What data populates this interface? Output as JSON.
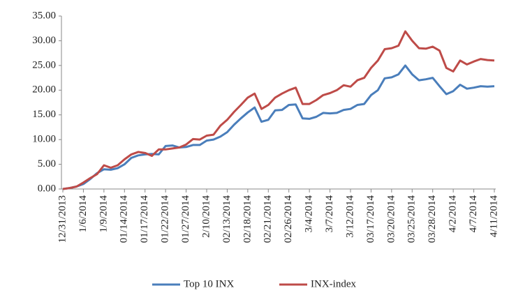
{
  "chart_data": {
    "type": "line",
    "categories": [
      "12/31/2013",
      null,
      null,
      "1/6/2014",
      null,
      null,
      "1/9/2014",
      null,
      null,
      "01/14/2014",
      null,
      null,
      "01/17/2014",
      null,
      null,
      "01/22/2014",
      null,
      null,
      "01/27/2014",
      null,
      null,
      "2/10/2014",
      null,
      null,
      "02/13/2014",
      null,
      null,
      "02/18/2014",
      null,
      null,
      "02/21/2014",
      null,
      null,
      "02/26/2014",
      null,
      null,
      "3/4/2014",
      null,
      null,
      "3/7/2014",
      null,
      null,
      "3/12/2014",
      null,
      null,
      "03/17/2014",
      null,
      null,
      "03/20/2014",
      null,
      null,
      "03/25/2014",
      null,
      null,
      "03/28/2014",
      null,
      null,
      "4/2/2014",
      null,
      null,
      "4/7/2014",
      null,
      null,
      "4/11/2014"
    ],
    "series": [
      {
        "name": "Top 10 INX",
        "color": "#4a7ebb",
        "values": [
          0,
          0.2,
          0.5,
          1.0,
          2.0,
          3.2,
          4.0,
          3.9,
          4.2,
          5.0,
          6.3,
          6.8,
          7.0,
          7.1,
          7.0,
          8.7,
          8.8,
          8.4,
          8.5,
          8.9,
          8.9,
          9.8,
          10.0,
          10.6,
          11.5,
          13.0,
          14.3,
          15.5,
          16.5,
          13.6,
          14.0,
          15.9,
          16.0,
          17.0,
          17.1,
          14.3,
          14.2,
          14.6,
          15.4,
          15.3,
          15.4,
          16.0,
          16.2,
          17.0,
          17.2,
          19.0,
          20.0,
          22.4,
          22.6,
          23.2,
          25.0,
          23.2,
          22.0,
          22.2,
          22.5,
          20.8,
          19.2,
          19.8,
          21.1,
          20.3,
          20.5,
          20.8,
          20.7,
          20.8
        ]
      },
      {
        "name": "INX-index",
        "color": "#be4b48",
        "values": [
          0,
          0.2,
          0.5,
          1.3,
          2.2,
          3.0,
          4.8,
          4.3,
          4.8,
          6.0,
          7.0,
          7.5,
          7.3,
          6.7,
          8.0,
          8.0,
          8.2,
          8.4,
          9.0,
          10.1,
          10.0,
          10.8,
          11.0,
          12.8,
          14.0,
          15.6,
          17.0,
          18.5,
          19.3,
          16.2,
          17.0,
          18.5,
          19.3,
          20.0,
          20.5,
          17.2,
          17.2,
          18.0,
          19.0,
          19.4,
          20.0,
          21.0,
          20.7,
          22.0,
          22.5,
          24.5,
          26.0,
          28.3,
          28.5,
          29.0,
          31.9,
          30.0,
          28.5,
          28.4,
          28.8,
          28.0,
          24.5,
          23.8,
          26.0,
          25.2,
          25.8,
          26.3,
          26.1,
          26.0
        ]
      }
    ],
    "ylim": [
      0,
      35
    ],
    "yticks": [
      {
        "value": 0,
        "label": "0.00"
      },
      {
        "value": 5,
        "label": "5.00"
      },
      {
        "value": 10,
        "label": "10.00"
      },
      {
        "value": 15,
        "label": "15.00"
      },
      {
        "value": 20,
        "label": "20.00"
      },
      {
        "value": 25,
        "label": "25.00"
      },
      {
        "value": 30,
        "label": "30.00"
      },
      {
        "value": 35,
        "label": "35.00"
      }
    ],
    "legend": "bottom"
  }
}
